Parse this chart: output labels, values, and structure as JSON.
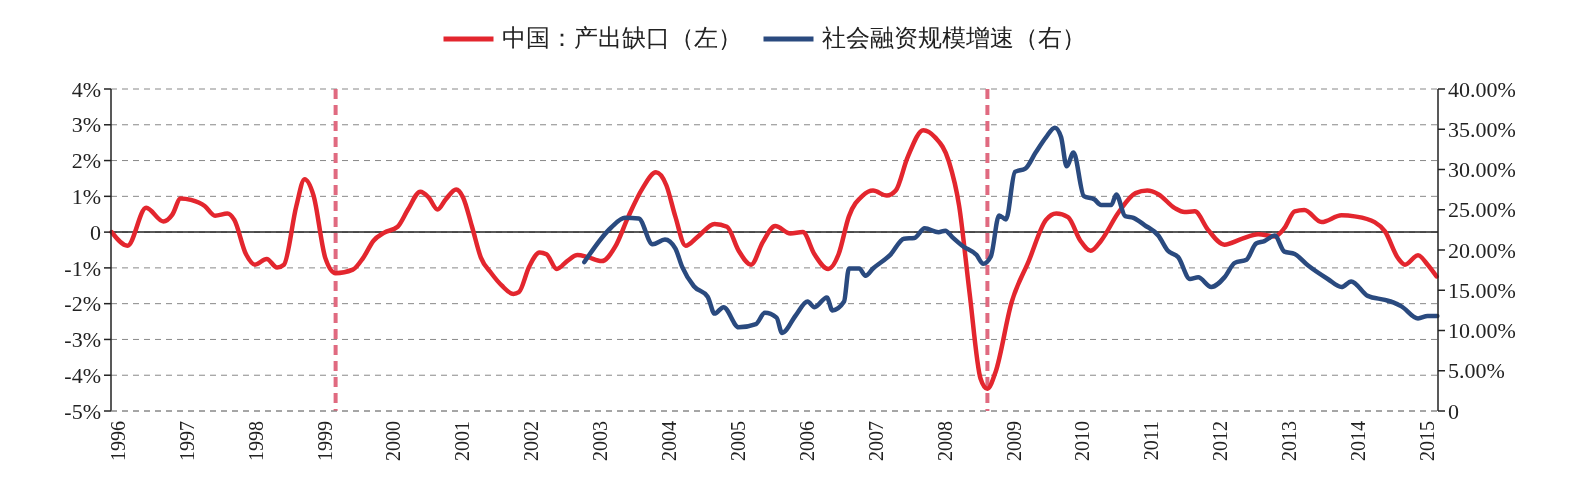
{
  "chart_data": {
    "type": "line",
    "xlim": [
      1995.9,
      2015.16
    ],
    "xticks": [
      1996,
      1997,
      1998,
      1999,
      2000,
      2001,
      2002,
      2003,
      2004,
      2005,
      2006,
      2007,
      2008,
      2009,
      2010,
      2011,
      2012,
      2013,
      2014,
      2015
    ],
    "ylim": [
      -5,
      4
    ],
    "yticks": [
      {
        "value": -5,
        "label": "-5%"
      },
      {
        "value": -4,
        "label": "-4%"
      },
      {
        "value": -3,
        "label": "-3%"
      },
      {
        "value": -2,
        "label": "-2%"
      },
      {
        "value": -1,
        "label": "-1%"
      },
      0,
      {
        "value": 1,
        "label": "1%"
      },
      {
        "value": 2,
        "label": "2%"
      },
      {
        "value": 3,
        "label": "3%"
      },
      {
        "value": 4,
        "label": "4%"
      }
    ],
    "y2lim": [
      0,
      40
    ],
    "y2ticks": [
      0,
      {
        "value": 5,
        "label": "5.00%"
      },
      {
        "value": 10,
        "label": "10.00%"
      },
      {
        "value": 15,
        "label": "15.00%"
      },
      {
        "value": 20,
        "label": "20.00%"
      },
      {
        "value": 25,
        "label": "25.00%"
      },
      {
        "value": 30,
        "label": "30.00%"
      },
      {
        "value": 35,
        "label": "35.00%"
      },
      {
        "value": 40,
        "label": "40.00%"
      }
    ],
    "grid": "y",
    "legend": "top",
    "line_style": "solid",
    "series": [
      {
        "name": "中国：产出缺口（左）",
        "color": "#e3262e",
        "x": [
          1995.91,
          1996.14,
          1996.41,
          1996.66,
          1996.79,
          1996.91,
          1997.06,
          1997.26,
          1997.41,
          1997.59,
          1997.69,
          1997.86,
          1997.99,
          1998.16,
          1998.31,
          1998.41,
          1998.59,
          1998.71,
          1998.84,
          1999.01,
          1999.16,
          1999.41,
          1999.56,
          1999.71,
          1999.86,
          2000.06,
          2000.21,
          2000.39,
          2000.51,
          2000.64,
          2000.76,
          2000.91,
          2001.01,
          2001.14,
          2001.27,
          2001.42,
          2001.57,
          2001.74,
          2001.82,
          2001.97,
          2002.12,
          2002.22,
          2002.37,
          2002.52,
          2002.67,
          2002.82,
          2003.02,
          2003.22,
          2003.41,
          2003.61,
          2003.81,
          2003.96,
          2004.09,
          2004.24,
          2004.41,
          2004.66,
          2004.84,
          2005.01,
          2005.19,
          2005.36,
          2005.54,
          2005.76,
          2005.94,
          2006.11,
          2006.31,
          2006.46,
          2006.61,
          2006.81,
          2006.96,
          2007.16,
          2007.29,
          2007.46,
          2007.69,
          2007.86,
          2008.06,
          2008.21,
          2008.36,
          2008.52,
          2008.62,
          2008.74,
          2008.97,
          2009.22,
          2009.47,
          2009.62,
          2009.79,
          2009.97,
          2010.12,
          2010.27,
          2010.52,
          2010.77,
          2010.94,
          2011.1,
          2011.34,
          2011.48,
          2011.63,
          2011.82,
          2012.06,
          2012.31,
          2012.55,
          2012.79,
          2012.93,
          2013.08,
          2013.22,
          2013.47,
          2013.76,
          2013.95,
          2014.24,
          2014.39,
          2014.58,
          2014.68,
          2014.87,
          2015.01,
          2015.14
        ],
        "values": [
          0,
          -0.38,
          0.68,
          0.3,
          0.49,
          0.94,
          0.9,
          0.73,
          0.46,
          0.52,
          0.34,
          -0.62,
          -0.91,
          -0.75,
          -0.99,
          -0.91,
          0.73,
          1.48,
          1.02,
          -0.72,
          -1.15,
          -1.05,
          -0.72,
          -0.24,
          -0.02,
          0.15,
          0.63,
          1.13,
          0.97,
          0.63,
          0.92,
          1.19,
          0.97,
          0.15,
          -0.72,
          -1.15,
          -1.49,
          -1.73,
          -1.68,
          -0.96,
          -0.57,
          -0.62,
          -1.03,
          -0.81,
          -0.64,
          -0.7,
          -0.81,
          -0.4,
          0.44,
          1.21,
          1.67,
          1.31,
          0.44,
          -0.38,
          -0.14,
          0.23,
          0.15,
          -0.52,
          -0.91,
          -0.28,
          0.17,
          -0.04,
          0,
          -0.62,
          -1.03,
          -0.62,
          0.44,
          1.02,
          1.16,
          1.02,
          1.16,
          2.08,
          2.85,
          2.65,
          1.98,
          0.73,
          -1.68,
          -4.09,
          -4.38,
          -3.9,
          -1.97,
          -0.81,
          0.34,
          0.52,
          0.42,
          -0.24,
          -0.52,
          -0.24,
          0.54,
          1.09,
          1.16,
          1.06,
          0.67,
          0.56,
          0.58,
          0.07,
          -0.35,
          -0.19,
          -0.06,
          -0.12,
          0.11,
          0.58,
          0.62,
          0.28,
          0.47,
          0.44,
          0.28,
          0.02,
          -0.73,
          -0.91,
          -0.65,
          -0.91,
          -1.24
        ]
      },
      {
        "name": "社会融资规模增速（右）",
        "color": "#2a4a7f",
        "axis": "y2",
        "x": [
          2002.77,
          2003.16,
          2003.36,
          2003.56,
          2003.76,
          2003.94,
          2004.09,
          2004.19,
          2004.36,
          2004.56,
          2004.66,
          2004.79,
          2005.01,
          2005.26,
          2005.39,
          2005.56,
          2005.64,
          2005.84,
          2006.01,
          2006.11,
          2006.29,
          2006.37,
          2006.54,
          2006.61,
          2006.76,
          2006.85,
          2006.96,
          2007.21,
          2007.41,
          2007.56,
          2007.71,
          2007.91,
          2008.01,
          2008.11,
          2008.26,
          2008.46,
          2008.56,
          2008.67,
          2008.79,
          2008.89,
          2009.02,
          2009.17,
          2009.32,
          2009.47,
          2009.6,
          2009.69,
          2009.77,
          2009.87,
          2010.02,
          2010.17,
          2010.27,
          2010.42,
          2010.49,
          2010.62,
          2010.74,
          2010.9,
          2011.1,
          2011.24,
          2011.39,
          2011.56,
          2011.68,
          2011.87,
          2012.06,
          2012.21,
          2012.38,
          2012.52,
          2012.64,
          2012.79,
          2012.93,
          2013.08,
          2013.27,
          2013.56,
          2013.76,
          2013.9,
          2014.14,
          2014.39,
          2014.51,
          2014.63,
          2014.87,
          2015.01,
          2015.15
        ],
        "values": [
          18.5,
          22.8,
          24.0,
          23.9,
          20.7,
          21.3,
          20.2,
          17.9,
          15.5,
          14.2,
          12.1,
          12.9,
          10.4,
          10.8,
          12.2,
          11.6,
          9.7,
          11.9,
          13.6,
          12.9,
          14.1,
          12.5,
          13.6,
          17.7,
          17.7,
          16.8,
          17.7,
          19.4,
          21.4,
          21.5,
          22.7,
          22.2,
          22.4,
          21.6,
          20.5,
          19.4,
          18.3,
          19.2,
          24.3,
          23.8,
          29.7,
          30.1,
          32.1,
          34.0,
          35.2,
          34.0,
          30.4,
          32.1,
          26.7,
          26.3,
          25.6,
          25.6,
          26.9,
          24.2,
          24.0,
          23.1,
          21.8,
          19.9,
          19.1,
          16.4,
          16.6,
          15.4,
          16.6,
          18.4,
          18.8,
          20.8,
          21.1,
          21.8,
          19.8,
          19.5,
          18.1,
          16.4,
          15.4,
          16.1,
          14.3,
          13.8,
          13.5,
          13.0,
          11.5,
          11.8,
          11.8
        ]
      }
    ],
    "ref_lines": [
      {
        "axis": "x",
        "value": 1999.16,
        "color": "#e06a80",
        "line_style": "dashed"
      },
      {
        "axis": "x",
        "value": 2008.62,
        "color": "#e06a80",
        "line_style": "dashed"
      }
    ]
  }
}
